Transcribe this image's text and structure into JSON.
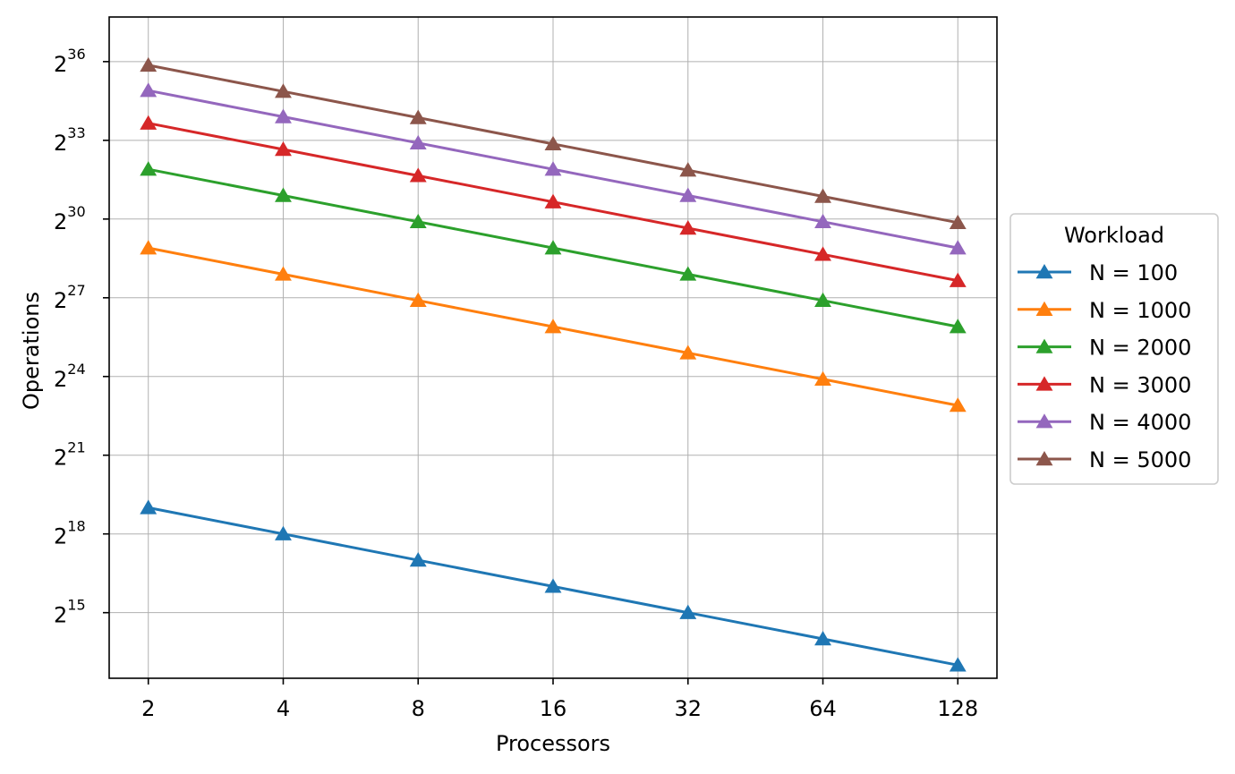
{
  "chart_data": {
    "type": "line",
    "xlabel": "Processors",
    "ylabel": "Operations",
    "x": [
      2,
      4,
      8,
      16,
      32,
      64,
      128
    ],
    "x_scale": "log2",
    "y_scale": "log2",
    "ylim_exponent": [
      12.5,
      37.7
    ],
    "y_ticks_base": "2",
    "y_tick_exponents": [
      "15",
      "18",
      "21",
      "24",
      "27",
      "30",
      "33",
      "36"
    ],
    "marker": "triangle-up",
    "grid": true,
    "legend": {
      "title": "Workload",
      "placement": "outside-right"
    },
    "series": [
      {
        "name": "N = 100",
        "color": "#1f77b4",
        "values": [
          524288,
          262144,
          131072,
          65536,
          32768,
          16384,
          8192
        ]
      },
      {
        "name": "N = 1000",
        "color": "#ff7f0e",
        "values": [
          500000000,
          250000000,
          125000000,
          62500000,
          31250000,
          15625000,
          7812500
        ]
      },
      {
        "name": "N = 2000",
        "color": "#2ca02c",
        "values": [
          4000000000,
          2000000000,
          1000000000,
          500000000,
          250000000,
          125000000,
          62500000
        ]
      },
      {
        "name": "N = 3000",
        "color": "#d62728",
        "values": [
          13500000000,
          6750000000,
          3375000000,
          1687500000,
          843750000,
          421875000,
          210937500
        ]
      },
      {
        "name": "N = 4000",
        "color": "#9467bd",
        "values": [
          32000000000,
          16000000000,
          8000000000,
          4000000000,
          2000000000,
          1000000000,
          500000000
        ]
      },
      {
        "name": "N = 5000",
        "color": "#8c564b",
        "values": [
          62500000000,
          31250000000,
          15625000000,
          7812500000,
          3906250000,
          1953125000,
          976562500
        ]
      }
    ]
  }
}
